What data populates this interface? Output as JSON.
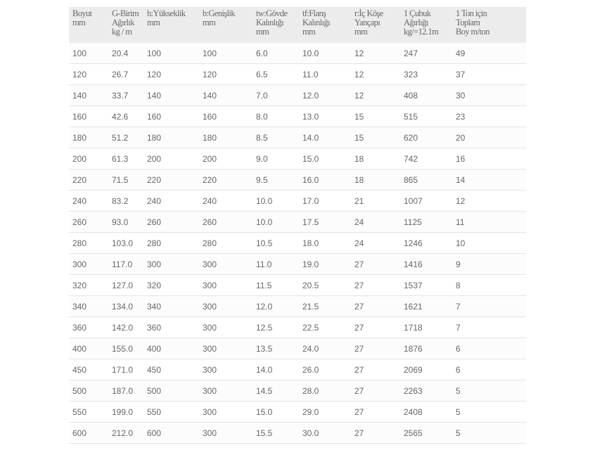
{
  "headers": [
    [
      "Boyut",
      "mm"
    ],
    [
      "G-Birim",
      "Ağırlık",
      "kg / m"
    ],
    [
      "h:Yükseklik",
      "mm"
    ],
    [
      "b:Genişlik",
      "mm"
    ],
    [
      "tw:Gövde",
      "Kalınlığı",
      "mm"
    ],
    [
      "tf:Flanş",
      "Kalınlığı",
      "mm"
    ],
    [
      "r:İç Köşe",
      "Yançapı",
      "mm"
    ],
    [
      "1 Çubuk",
      "Ağırlığı",
      "kg/=12.1m"
    ],
    [
      "1 Ton için",
      "Toplam",
      "Boy m/ton"
    ]
  ],
  "rows": [
    [
      "100",
      "20.4",
      "100",
      "100",
      "6.0",
      "10.0",
      "12",
      "247",
      "49"
    ],
    [
      "120",
      "26.7",
      "120",
      "120",
      "6.5",
      "11.0",
      "12",
      "323",
      "37"
    ],
    [
      "140",
      "33.7",
      "140",
      "140",
      "7.0",
      "12.0",
      "12",
      "408",
      "30"
    ],
    [
      "160",
      "42.6",
      "160",
      "160",
      "8.0",
      "13.0",
      "15",
      "515",
      "23"
    ],
    [
      "180",
      "51.2",
      "180",
      "180",
      "8.5",
      "14.0",
      "15",
      "620",
      "20"
    ],
    [
      "200",
      "61.3",
      "200",
      "200",
      "9.0",
      "15.0",
      "18",
      "742",
      "16"
    ],
    [
      "220",
      "71.5",
      "220",
      "220",
      "9.5",
      "16.0",
      "18",
      "865",
      "14"
    ],
    [
      "240",
      "83.2",
      "240",
      "240",
      "10.0",
      "17.0",
      "21",
      "1007",
      "12"
    ],
    [
      "260",
      "93.0",
      "260",
      "260",
      "10.0",
      "17.5",
      "24",
      "1125",
      "11"
    ],
    [
      "280",
      "103.0",
      "280",
      "280",
      "10.5",
      "18.0",
      "24",
      "1246",
      "10"
    ],
    [
      "300",
      "117.0",
      "300",
      "300",
      "11.0",
      "19.0",
      "27",
      "1416",
      "9"
    ],
    [
      "320",
      "127.0",
      "320",
      "300",
      "11.5",
      "20.5",
      "27",
      "1537",
      "8"
    ],
    [
      "340",
      "134.0",
      "340",
      "300",
      "12.0",
      "21.5",
      "27",
      "1621",
      "7"
    ],
    [
      "360",
      "142.0",
      "360",
      "300",
      "12.5",
      "22.5",
      "27",
      "1718",
      "7"
    ],
    [
      "400",
      "155.0",
      "400",
      "300",
      "13.5",
      "24.0",
      "27",
      "1876",
      "6"
    ],
    [
      "450",
      "171.0",
      "450",
      "300",
      "14.0",
      "26.0",
      "27",
      "2069",
      "6"
    ],
    [
      "500",
      "187.0",
      "500",
      "300",
      "14.5",
      "28.0",
      "27",
      "2263",
      "5"
    ],
    [
      "550",
      "199.0",
      "550",
      "300",
      "15.0",
      "29.0",
      "27",
      "2408",
      "5"
    ],
    [
      "600",
      "212.0",
      "600",
      "300",
      "15.5",
      "30.0",
      "27",
      "2565",
      "5"
    ]
  ]
}
